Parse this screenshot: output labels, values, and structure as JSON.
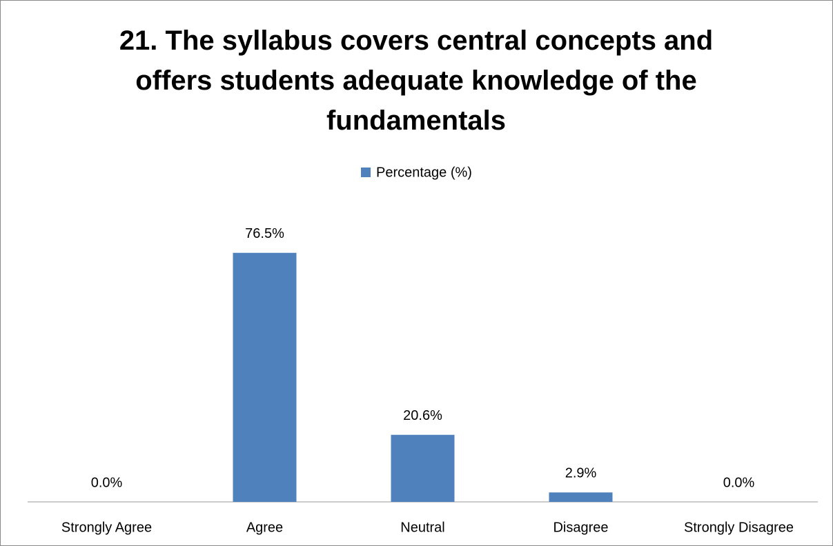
{
  "chart_data": {
    "type": "bar",
    "title": "21. The syllabus covers central concepts and offers students adequate knowledge of the fundamentals",
    "categories": [
      "Strongly Agree",
      "Agree",
      "Neutral",
      "Disagree",
      "Strongly Disagree"
    ],
    "series": [
      {
        "name": "Percentage (%)",
        "color": "#4f81bd",
        "values": [
          0.0,
          76.5,
          20.6,
          2.9,
          0.0
        ],
        "value_labels": [
          "0.0%",
          "76.5%",
          "20.6%",
          "2.9%",
          "0.0%"
        ]
      }
    ],
    "ylim": [
      0,
      90
    ],
    "legend": "top"
  }
}
